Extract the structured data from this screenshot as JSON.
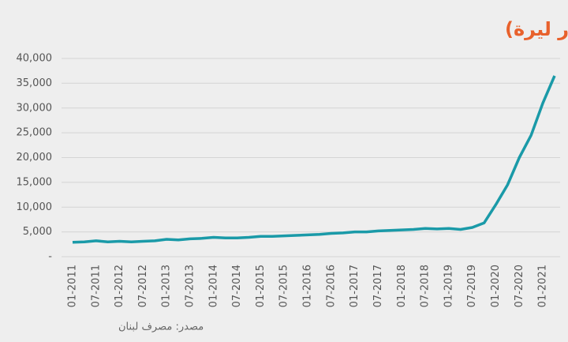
{
  "chart_data": {
    "type": "line",
    "title": "الكتلة النقدية المتداولة خارج مصرف لبنان (مليار ليرة)",
    "source": "مصدر: مصرف لبنان",
    "categories": [
      "01-2011",
      null,
      "07-2011",
      null,
      "01-2012",
      null,
      "07-2012",
      null,
      "01-2013",
      null,
      "07-2013",
      null,
      "01-2014",
      null,
      "07-2014",
      null,
      "01-2015",
      null,
      "07-2015",
      null,
      "01-2016",
      null,
      "07-2016",
      null,
      "01-2017",
      null,
      "07-2017",
      null,
      "01-2018",
      null,
      "07-2018",
      null,
      "01-2019",
      null,
      "07-2019",
      null,
      "01-2020",
      null,
      "07-2020",
      null,
      "01-2021",
      null
    ],
    "series": [
      {
        "color": "#1a9aa8",
        "values": [
          2900,
          3000,
          3200,
          3000,
          3100,
          3000,
          3100,
          3200,
          3500,
          3400,
          3600,
          3700,
          3900,
          3800,
          3800,
          3900,
          4100,
          4100,
          4200,
          4300,
          4400,
          4500,
          4700,
          4800,
          5000,
          5000,
          5200,
          5300,
          5400,
          5500,
          5700,
          5600,
          5700,
          5500,
          5900,
          6800,
          10500,
          14500,
          20000,
          24500,
          31000,
          36500
        ]
      }
    ],
    "ylim": [
      0,
      40000
    ],
    "yticks": [
      {
        "value": 0,
        "label": "-"
      },
      {
        "value": 5000,
        "label": "5,000"
      },
      {
        "value": 10000,
        "label": "10,000"
      },
      {
        "value": 15000,
        "label": "15,000"
      },
      {
        "value": 20000,
        "label": "20,000"
      },
      {
        "value": 25000,
        "label": "25,000"
      },
      {
        "value": 30000,
        "label": "30,000"
      },
      {
        "value": 35000,
        "label": "35,000"
      },
      {
        "value": 40000,
        "label": "40,000"
      }
    ],
    "grid": true
  }
}
